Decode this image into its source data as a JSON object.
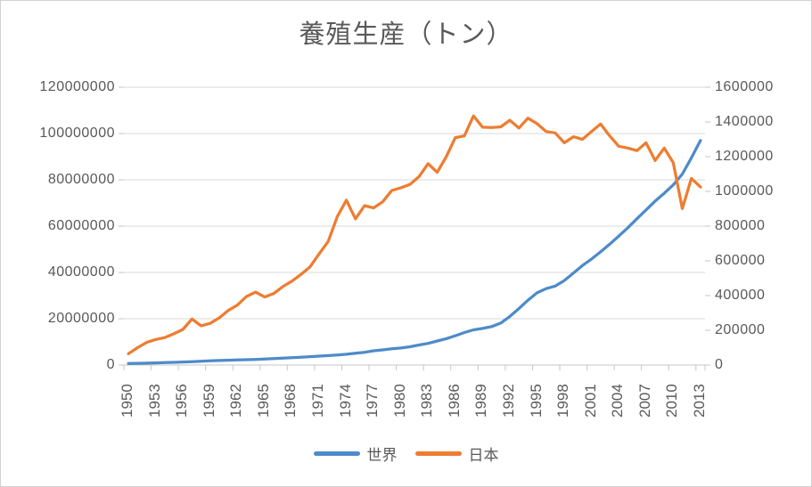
{
  "chart_data": {
    "type": "line",
    "title": "養殖生産（トン）",
    "grid": "horizontal",
    "legend_position": "bottom",
    "x_years": [
      1950,
      1951,
      1952,
      1953,
      1954,
      1955,
      1956,
      1957,
      1958,
      1959,
      1960,
      1961,
      1962,
      1963,
      1964,
      1965,
      1966,
      1967,
      1968,
      1969,
      1970,
      1971,
      1972,
      1973,
      1974,
      1975,
      1976,
      1977,
      1978,
      1979,
      1980,
      1981,
      1982,
      1983,
      1984,
      1985,
      1986,
      1987,
      1988,
      1989,
      1990,
      1991,
      1992,
      1993,
      1994,
      1995,
      1996,
      1997,
      1998,
      1999,
      2000,
      2001,
      2002,
      2003,
      2004,
      2005,
      2006,
      2007,
      2008,
      2009,
      2010,
      2011,
      2012,
      2013
    ],
    "x_tick_labels": [
      "1950",
      "1953",
      "1956",
      "1959",
      "1962",
      "1965",
      "1968",
      "1971",
      "1974",
      "1977",
      "1980",
      "1983",
      "1986",
      "1989",
      "1992",
      "1995",
      "1998",
      "2001",
      "2004",
      "2007",
      "2010",
      "2013"
    ],
    "x_tick_interval_years": 3,
    "left_axis": {
      "min": 0,
      "max": 120000000,
      "step": 20000000,
      "tick_labels": [
        "0",
        "20000000",
        "40000000",
        "60000000",
        "80000000",
        "100000000",
        "120000000"
      ]
    },
    "right_axis": {
      "min": 0,
      "max": 1600000,
      "step": 200000,
      "tick_labels": [
        "0",
        "200000",
        "400000",
        "600000",
        "800000",
        "1000000",
        "1200000",
        "1400000",
        "1600000"
      ]
    },
    "series": [
      {
        "id": "world",
        "name": "世界",
        "axis": "left",
        "color": "#4d8bc9",
        "values": [
          640000,
          720000,
          820000,
          930000,
          1040000,
          1160000,
          1310000,
          1470000,
          1640000,
          1790000,
          1980000,
          2080000,
          2180000,
          2300000,
          2440000,
          2610000,
          2800000,
          3000000,
          3200000,
          3400000,
          3610000,
          3840000,
          4080000,
          4360000,
          4670000,
          5060000,
          5500000,
          6150000,
          6550000,
          7000000,
          7350000,
          7900000,
          8650000,
          9350000,
          10400000,
          11400000,
          12650000,
          14050000,
          15200000,
          15800000,
          16600000,
          18100000,
          21000000,
          24400000,
          28000000,
          31200000,
          33000000,
          34100000,
          36500000,
          39700000,
          43000000,
          45800000,
          48900000,
          52200000,
          55700000,
          59300000,
          63200000,
          67000000,
          70800000,
          74200000,
          77800000,
          82500000,
          89500000,
          97000000
        ]
      },
      {
        "id": "japan",
        "name": "日本",
        "axis": "right",
        "color": "#ed7d31",
        "values": [
          65000,
          100000,
          130000,
          147000,
          158000,
          180000,
          205000,
          265000,
          226000,
          240000,
          272000,
          315000,
          345000,
          395000,
          420000,
          392000,
          412000,
          452000,
          483000,
          522000,
          565000,
          640000,
          712000,
          855000,
          950000,
          842000,
          918000,
          905000,
          940000,
          1005000,
          1021000,
          1040000,
          1085000,
          1160000,
          1110000,
          1200000,
          1310000,
          1320000,
          1435000,
          1370000,
          1368000,
          1372000,
          1410000,
          1365000,
          1422000,
          1390000,
          1345000,
          1337000,
          1280000,
          1315000,
          1300000,
          1345000,
          1388000,
          1320000,
          1260000,
          1250000,
          1235000,
          1280000,
          1178000,
          1250000,
          1166000,
          901000,
          1075000,
          1025000
        ]
      }
    ]
  },
  "colors": {
    "title_text": "#595959",
    "tick_text": "#595959",
    "gridline": "#d9d9d9",
    "axis_line": "#c6c6c6",
    "background": "#ffffff",
    "frame_border": "#d2d2d2"
  }
}
